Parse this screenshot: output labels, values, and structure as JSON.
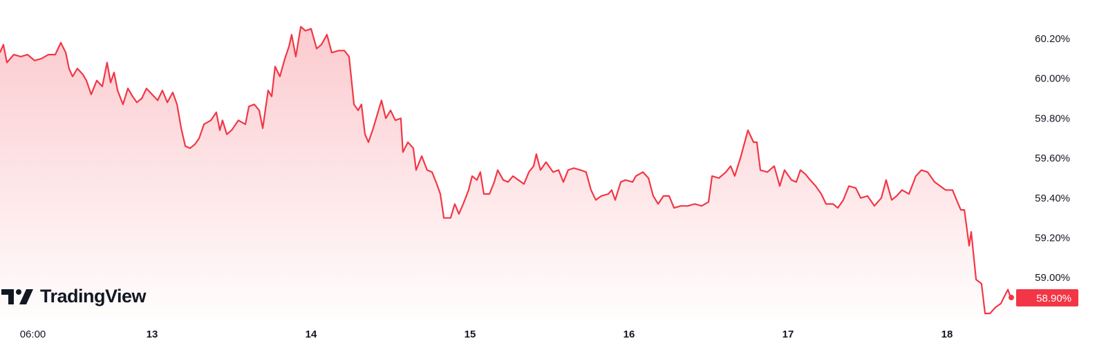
{
  "brand": {
    "logo_text": "TradingView"
  },
  "colors": {
    "line": "#F23645",
    "badge": "#F23645",
    "text": "#131722"
  },
  "chart_data": {
    "type": "area",
    "x_unit": "day of month",
    "y_unit": "%",
    "ylim": [
      58.8,
      60.3
    ],
    "grid": false,
    "yticks": [
      {
        "value": 60.2,
        "label": "60.20%"
      },
      {
        "value": 60.0,
        "label": "60.00%"
      },
      {
        "value": 59.8,
        "label": "59.80%"
      },
      {
        "value": 59.6,
        "label": "59.60%"
      },
      {
        "value": 59.4,
        "label": "59.40%"
      },
      {
        "value": 59.2,
        "label": "59.20%"
      },
      {
        "value": 59.0,
        "label": "59.00%"
      }
    ],
    "xticks": [
      {
        "value": 12.25,
        "label": "06:00",
        "bold": false
      },
      {
        "value": 13,
        "label": "13",
        "bold": true
      },
      {
        "value": 14,
        "label": "14",
        "bold": true
      },
      {
        "value": 15,
        "label": "15",
        "bold": true
      },
      {
        "value": 16,
        "label": "16",
        "bold": true
      },
      {
        "value": 17,
        "label": "17",
        "bold": true
      },
      {
        "value": 18,
        "label": "18",
        "bold": true
      }
    ],
    "last_value": 58.9,
    "last_value_label": "58.90%",
    "x": [
      12.043,
      12.065,
      12.087,
      12.13,
      12.174,
      12.217,
      12.261,
      12.304,
      12.348,
      12.391,
      12.426,
      12.457,
      12.478,
      12.5,
      12.53,
      12.565,
      12.587,
      12.617,
      12.652,
      12.687,
      12.717,
      12.739,
      12.761,
      12.783,
      12.817,
      12.848,
      12.878,
      12.904,
      12.935,
      12.965,
      13.0,
      13.035,
      13.065,
      13.096,
      13.13,
      13.157,
      13.183,
      13.209,
      13.239,
      13.27,
      13.296,
      13.326,
      13.37,
      13.404,
      13.426,
      13.443,
      13.47,
      13.5,
      13.543,
      13.587,
      13.609,
      13.643,
      13.674,
      13.696,
      13.73,
      13.752,
      13.774,
      13.804,
      13.835,
      13.861,
      13.878,
      13.904,
      13.935,
      13.965,
      14.0,
      14.035,
      14.065,
      14.1,
      14.13,
      14.174,
      14.209,
      14.239,
      14.27,
      14.296,
      14.317,
      14.339,
      14.361,
      14.391,
      14.417,
      14.443,
      14.47,
      14.5,
      14.53,
      14.565,
      14.578,
      14.609,
      14.643,
      14.661,
      14.696,
      14.73,
      14.761,
      14.791,
      14.813,
      14.835,
      14.878,
      14.904,
      14.93,
      14.957,
      14.991,
      15.013,
      15.043,
      15.065,
      15.087,
      15.122,
      15.152,
      15.174,
      15.209,
      15.239,
      15.27,
      15.304,
      15.339,
      15.37,
      15.4,
      15.417,
      15.443,
      15.478,
      15.522,
      15.557,
      15.587,
      15.617,
      15.652,
      15.696,
      15.73,
      15.761,
      15.791,
      15.826,
      15.87,
      15.891,
      15.913,
      15.948,
      15.978,
      16.022,
      16.043,
      16.087,
      16.122,
      16.152,
      16.183,
      16.217,
      16.252,
      16.283,
      16.326,
      16.37,
      16.413,
      16.457,
      16.5,
      16.522,
      16.565,
      16.609,
      16.639,
      16.665,
      16.704,
      16.748,
      16.783,
      16.804,
      16.826,
      16.87,
      16.913,
      16.948,
      16.978,
      17.022,
      17.052,
      17.078,
      17.109,
      17.139,
      17.174,
      17.209,
      17.239,
      17.283,
      17.313,
      17.348,
      17.383,
      17.426,
      17.457,
      17.5,
      17.543,
      17.587,
      17.617,
      17.652,
      17.683,
      17.717,
      17.761,
      17.804,
      17.839,
      17.878,
      17.922,
      17.957,
      17.991,
      18.035,
      18.065,
      18.087,
      18.109,
      18.139,
      18.152,
      18.183,
      18.217,
      18.239,
      18.27,
      18.304,
      18.339,
      18.357,
      18.383,
      18.4
    ],
    "values": [
      60.13,
      60.17,
      60.08,
      60.12,
      60.11,
      60.12,
      60.09,
      60.1,
      60.12,
      60.12,
      60.18,
      60.13,
      60.05,
      60.01,
      60.05,
      60.02,
      59.99,
      59.92,
      59.99,
      59.96,
      60.08,
      59.98,
      60.03,
      59.94,
      59.87,
      59.95,
      59.91,
      59.88,
      59.9,
      59.95,
      59.92,
      59.89,
      59.94,
      59.88,
      59.93,
      59.87,
      59.75,
      59.66,
      59.65,
      59.67,
      59.7,
      59.77,
      59.79,
      59.83,
      59.74,
      59.79,
      59.72,
      59.74,
      59.79,
      59.77,
      59.86,
      59.87,
      59.84,
      59.75,
      59.94,
      59.91,
      60.06,
      60.01,
      60.1,
      60.16,
      60.22,
      60.11,
      60.26,
      60.24,
      60.25,
      60.15,
      60.17,
      60.22,
      60.13,
      60.14,
      60.14,
      60.11,
      59.87,
      59.84,
      59.87,
      59.72,
      59.68,
      59.75,
      59.82,
      59.89,
      59.8,
      59.84,
      59.79,
      59.8,
      59.63,
      59.68,
      59.65,
      59.54,
      59.61,
      59.54,
      59.53,
      59.47,
      59.42,
      59.3,
      59.3,
      59.37,
      59.32,
      59.37,
      59.44,
      59.51,
      59.49,
      59.53,
      59.42,
      59.42,
      59.48,
      59.54,
      59.49,
      59.48,
      59.51,
      59.49,
      59.47,
      59.53,
      59.56,
      59.62,
      59.54,
      59.58,
      59.53,
      59.54,
      59.48,
      59.54,
      59.55,
      59.54,
      59.53,
      59.44,
      59.39,
      59.41,
      59.42,
      59.44,
      59.39,
      59.48,
      59.49,
      59.48,
      59.51,
      59.53,
      59.5,
      59.41,
      59.37,
      59.41,
      59.41,
      59.35,
      59.36,
      59.36,
      59.37,
      59.36,
      59.38,
      59.51,
      59.5,
      59.53,
      59.56,
      59.51,
      59.61,
      59.74,
      59.68,
      59.68,
      59.54,
      59.53,
      59.56,
      59.46,
      59.54,
      59.49,
      59.48,
      59.54,
      59.52,
      59.49,
      59.46,
      59.42,
      59.37,
      59.37,
      59.35,
      59.39,
      59.46,
      59.45,
      59.4,
      59.41,
      59.36,
      59.4,
      59.49,
      59.39,
      59.41,
      59.44,
      59.42,
      59.51,
      59.54,
      59.53,
      59.48,
      59.46,
      59.44,
      59.44,
      59.38,
      59.34,
      59.34,
      59.16,
      59.23,
      58.99,
      58.97,
      58.82,
      58.82,
      58.85,
      58.87,
      58.9,
      58.94,
      58.9
    ]
  }
}
